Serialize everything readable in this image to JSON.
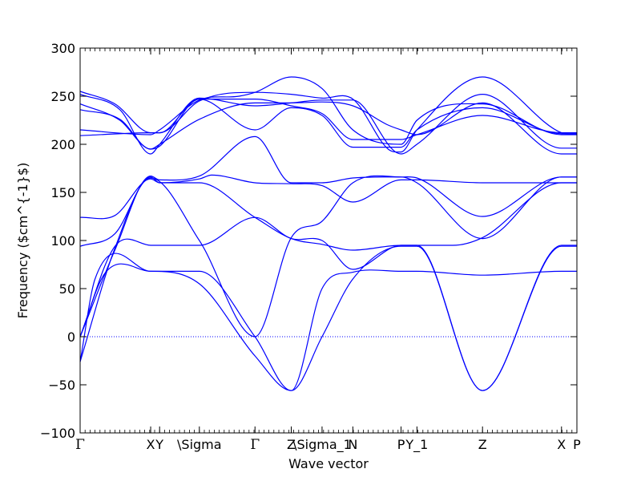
{
  "chart_data": {
    "type": "line",
    "title": "",
    "xlabel": "Wave vector",
    "ylabel": "Frequency ($cm^{-1}$)",
    "ylim": [
      -100,
      300
    ],
    "yticks": [
      -100,
      -50,
      0,
      50,
      100,
      150,
      200,
      250,
      300
    ],
    "ytick_labels": [
      "−100",
      "−50",
      "0",
      "50",
      "100",
      "150",
      "200",
      "250",
      "300"
    ],
    "grid": false,
    "zero_line": {
      "y": 0,
      "style": "dotted",
      "color": "#0000ff"
    },
    "line_color": "#0000ff",
    "xlim": [
      0,
      10.0
    ],
    "special_points": [
      {
        "label": "Γ",
        "x": 0.0
      },
      {
        "label": "X",
        "x": 1.42
      },
      {
        "label": "Y",
        "x": 1.6
      },
      {
        "label": "\\Sigma",
        "x": 2.4
      },
      {
        "label": "Γ",
        "x": 3.52
      },
      {
        "label": "Z",
        "x": 4.25
      },
      {
        "label": "\\Sigma_1",
        "x": 4.87
      },
      {
        "label": "N",
        "x": 5.49
      },
      {
        "label": "P",
        "x": 6.46
      },
      {
        "label": "Y_1",
        "x": 6.78
      },
      {
        "label": "Z",
        "x": 8.1
      },
      {
        "label": "X",
        "x": 9.69
      },
      {
        "label": "P",
        "x": 10.0
      }
    ],
    "series": [
      {
        "values": [
          [
            0,
            255
          ],
          [
            0.7,
            242
          ],
          [
            1.42,
            212
          ],
          [
            1.6,
            212
          ],
          [
            2.4,
            245
          ],
          [
            3.52,
            254
          ],
          [
            4.25,
            252
          ],
          [
            4.87,
            248
          ],
          [
            5.49,
            247
          ],
          [
            6.2,
            195
          ],
          [
            6.46,
            192
          ],
          [
            6.78,
            215
          ],
          [
            8.1,
            270
          ],
          [
            9.69,
            212
          ],
          [
            10.0,
            211
          ]
        ]
      },
      {
        "values": [
          [
            0,
            252
          ],
          [
            0.8,
            236
          ],
          [
            1.42,
            190
          ],
          [
            1.6,
            200
          ],
          [
            2.4,
            248
          ],
          [
            3.52,
            240
          ],
          [
            4.25,
            243
          ],
          [
            4.87,
            246
          ],
          [
            5.49,
            246
          ],
          [
            6.46,
            190
          ],
          [
            6.78,
            200
          ],
          [
            8.1,
            252
          ],
          [
            9.69,
            196
          ],
          [
            10.0,
            196
          ]
        ]
      },
      {
        "values": [
          [
            0,
            242
          ],
          [
            0.8,
            225
          ],
          [
            1.42,
            195
          ],
          [
            1.6,
            200
          ],
          [
            2.4,
            226
          ],
          [
            3.52,
            243
          ],
          [
            4.25,
            243
          ],
          [
            4.87,
            244
          ],
          [
            5.49,
            240
          ],
          [
            6.2,
            220
          ],
          [
            6.46,
            215
          ],
          [
            6.78,
            210
          ],
          [
            8.1,
            243
          ],
          [
            9.69,
            190
          ],
          [
            10.0,
            190
          ]
        ]
      },
      {
        "values": [
          [
            0,
            236
          ],
          [
            0.8,
            226
          ],
          [
            1.42,
            195
          ],
          [
            1.6,
            198
          ],
          [
            2.4,
            247
          ],
          [
            3.52,
            215
          ],
          [
            4.25,
            238
          ],
          [
            4.87,
            230
          ],
          [
            5.49,
            197
          ],
          [
            6.46,
            197
          ],
          [
            6.78,
            215
          ],
          [
            8.1,
            238
          ],
          [
            9.69,
            211
          ],
          [
            10.0,
            211
          ]
        ]
      },
      {
        "values": [
          [
            0,
            215
          ],
          [
            1.42,
            210
          ],
          [
            1.6,
            215
          ],
          [
            2.4,
            246
          ],
          [
            3.2,
            250
          ],
          [
            3.52,
            254
          ],
          [
            4.25,
            270
          ],
          [
            4.87,
            258
          ],
          [
            5.49,
            215
          ],
          [
            6.46,
            200
          ],
          [
            6.78,
            225
          ],
          [
            8.1,
            242
          ],
          [
            9.69,
            210
          ],
          [
            10.0,
            210
          ]
        ]
      },
      {
        "values": [
          [
            0,
            209
          ],
          [
            1.42,
            212
          ],
          [
            1.6,
            212
          ],
          [
            2.4,
            247
          ],
          [
            3.52,
            247
          ],
          [
            4.25,
            240
          ],
          [
            4.87,
            232
          ],
          [
            5.49,
            205
          ],
          [
            6.46,
            205
          ],
          [
            6.78,
            210
          ],
          [
            8.1,
            230
          ],
          [
            9.69,
            212
          ],
          [
            10.0,
            212
          ]
        ]
      },
      {
        "values": [
          [
            0,
            124
          ],
          [
            0.7,
            126
          ],
          [
            1.42,
            164
          ],
          [
            1.6,
            160
          ],
          [
            2.4,
            160
          ],
          [
            3.52,
            124
          ],
          [
            4.25,
            102
          ],
          [
            4.87,
            96
          ],
          [
            5.49,
            90
          ],
          [
            6.46,
            95
          ],
          [
            6.78,
            95
          ],
          [
            7.5,
            95
          ],
          [
            8.1,
            103
          ],
          [
            9.69,
            160
          ],
          [
            10.0,
            160
          ]
        ]
      },
      {
        "values": [
          [
            0,
            94
          ],
          [
            0.7,
            107
          ],
          [
            1.42,
            166
          ],
          [
            1.6,
            160
          ],
          [
            2.4,
            164
          ],
          [
            2.65,
            168
          ],
          [
            3.52,
            160
          ],
          [
            4.25,
            159
          ],
          [
            4.87,
            157
          ],
          [
            5.49,
            140
          ],
          [
            6.46,
            163
          ],
          [
            6.78,
            163
          ],
          [
            8.1,
            160
          ],
          [
            9.69,
            160
          ],
          [
            10.0,
            160
          ]
        ]
      },
      {
        "values": [
          [
            0,
            0
          ],
          [
            0.7,
            90
          ],
          [
            1.42,
            167
          ],
          [
            1.6,
            163
          ],
          [
            2.4,
            167
          ],
          [
            3.52,
            208
          ],
          [
            4.25,
            160
          ],
          [
            4.87,
            160
          ],
          [
            5.49,
            165
          ],
          [
            6.46,
            166
          ],
          [
            6.78,
            165
          ],
          [
            8.1,
            125
          ],
          [
            9.69,
            166
          ],
          [
            10.0,
            166
          ]
        ]
      },
      {
        "values": [
          [
            0,
            -26
          ],
          [
            0.7,
            92
          ],
          [
            1.42,
            165
          ],
          [
            2.4,
            100
          ],
          [
            3.52,
            0
          ],
          [
            4.25,
            103
          ],
          [
            4.87,
            120
          ],
          [
            5.49,
            160
          ],
          [
            6.46,
            166
          ],
          [
            6.78,
            160
          ],
          [
            8.1,
            102
          ],
          [
            9.69,
            166
          ],
          [
            10.0,
            166
          ]
        ]
      },
      {
        "values": [
          [
            0,
            0
          ],
          [
            0.7,
            94
          ],
          [
            1.42,
            95
          ],
          [
            2.4,
            95
          ],
          [
            3.52,
            124
          ],
          [
            4.25,
            102
          ],
          [
            4.87,
            100
          ],
          [
            5.49,
            70
          ],
          [
            6.46,
            95
          ],
          [
            6.78,
            95
          ],
          [
            8.1,
            -56
          ],
          [
            9.69,
            95
          ],
          [
            10.0,
            95
          ]
        ]
      },
      {
        "values": [
          [
            0,
            -26
          ],
          [
            0.3,
            60
          ],
          [
            1.42,
            68
          ],
          [
            2.4,
            68
          ],
          [
            3.52,
            0
          ],
          [
            4.25,
            -56
          ],
          [
            4.87,
            0
          ],
          [
            5.49,
            60
          ],
          [
            6.46,
            94
          ],
          [
            6.78,
            94
          ],
          [
            8.1,
            -56
          ],
          [
            9.69,
            94
          ],
          [
            10.0,
            94
          ]
        ]
      },
      {
        "values": [
          [
            0,
            0
          ],
          [
            0.5,
            66
          ],
          [
            1.42,
            68
          ],
          [
            2.4,
            55
          ],
          [
            3.52,
            -20
          ],
          [
            4.25,
            -56
          ],
          [
            4.87,
            50
          ],
          [
            5.49,
            67
          ],
          [
            6.46,
            68
          ],
          [
            6.78,
            68
          ],
          [
            8.1,
            64
          ],
          [
            9.69,
            68
          ],
          [
            10.0,
            68
          ]
        ]
      }
    ]
  }
}
